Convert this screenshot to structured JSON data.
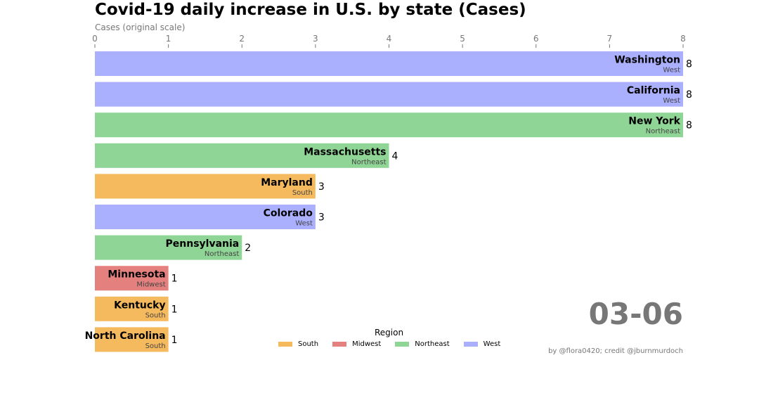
{
  "title": "Covid-19 daily increase in U.S. by state (Cases)",
  "subtitle": "Cases (original scale)",
  "date_label": "03-06",
  "credit": "by @flora0420; credit @jburnmurdoch",
  "legend": {
    "title": "Region",
    "items": [
      {
        "label": "South",
        "color": "#f5b95e"
      },
      {
        "label": "Midwest",
        "color": "#e4807d"
      },
      {
        "label": "Northeast",
        "color": "#8fd595"
      },
      {
        "label": "West",
        "color": "#aaaffe"
      }
    ]
  },
  "chart_data": {
    "type": "bar",
    "orientation": "horizontal",
    "xlim": [
      0,
      8
    ],
    "xticks": [
      "0",
      "1",
      "2",
      "3",
      "4",
      "5",
      "6",
      "7",
      "8"
    ],
    "xlabel": "Cases (original scale)",
    "title": "Covid-19 daily increase in U.S. by state (Cases)",
    "legend_placement": "bottom-center",
    "grid": false,
    "categories": [
      "Washington",
      "California",
      "New York",
      "Massachusetts",
      "Maryland",
      "Colorado",
      "Pennsylvania",
      "Minnesota",
      "Kentucky",
      "North Carolina"
    ],
    "regions": [
      "West",
      "West",
      "Northeast",
      "Northeast",
      "South",
      "West",
      "Northeast",
      "Midwest",
      "South",
      "South"
    ],
    "values": [
      8,
      8,
      8,
      4,
      3,
      3,
      2,
      1,
      1,
      1
    ],
    "value_labels": [
      "8",
      "8",
      "8",
      "4",
      "3",
      "3",
      "2",
      "1",
      "1",
      "1"
    ]
  }
}
